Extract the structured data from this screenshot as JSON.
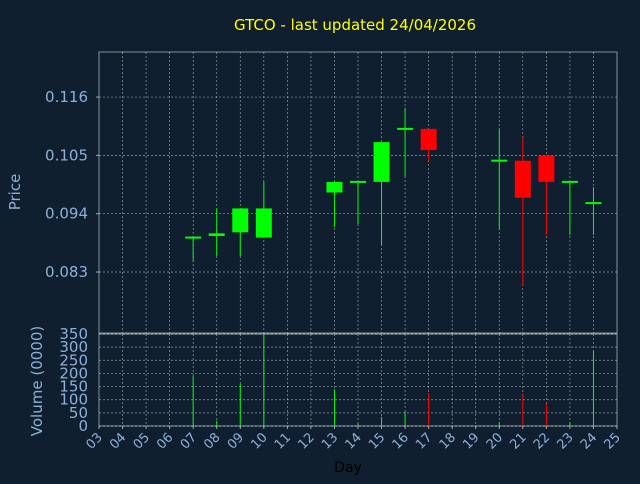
{
  "chart_data": {
    "type": "candlestick",
    "title": "GTCO - last updated 24/04/2026",
    "price_ylabel": "Price",
    "volume_ylabel": "Volume (0000)",
    "xlabel": "Day",
    "x_tick_labels": [
      "03",
      "04",
      "05",
      "06",
      "07",
      "08",
      "09",
      "10",
      "11",
      "12",
      "13",
      "14",
      "15",
      "16",
      "17",
      "18",
      "19",
      "20",
      "21",
      "22",
      "23",
      "24",
      "25"
    ],
    "price_ticks": [
      "0.083",
      "0.094",
      "0.105",
      "0.116"
    ],
    "price_ylim": [
      0.0715,
      0.1245
    ],
    "volume_ticks": [
      "0",
      "50",
      "100",
      "150",
      "200",
      "250",
      "300",
      "350"
    ],
    "volume_ylim": [
      0,
      350
    ],
    "grid": true,
    "colors": {
      "up": "#00ff00",
      "down": "#ff0000",
      "flat": "#00ff00",
      "title": "#ffff00",
      "axis_text": "#8fb0d8",
      "grid": "#ffffff",
      "background": "#0f1f30"
    },
    "candles": [
      {
        "day": "07",
        "open": 0.0895,
        "high": 0.0898,
        "low": 0.085,
        "close": 0.0895,
        "volume": 190
      },
      {
        "day": "08",
        "open": 0.0898,
        "high": 0.095,
        "low": 0.086,
        "close": 0.0903,
        "volume": 20
      },
      {
        "day": "09",
        "open": 0.0905,
        "high": 0.095,
        "low": 0.086,
        "close": 0.095,
        "volume": 160
      },
      {
        "day": "10",
        "open": 0.0895,
        "high": 0.1,
        "low": 0.0895,
        "close": 0.095,
        "volume": 350
      },
      {
        "day": "13",
        "open": 0.098,
        "high": 0.1,
        "low": 0.0915,
        "close": 0.1,
        "volume": 140
      },
      {
        "day": "14",
        "open": 0.1,
        "high": 0.1,
        "low": 0.092,
        "close": 0.1,
        "volume": 10
      },
      {
        "day": "15",
        "open": 0.1,
        "high": 0.1075,
        "low": 0.088,
        "close": 0.1075,
        "volume": 35
      },
      {
        "day": "16",
        "open": 0.11,
        "high": 0.114,
        "low": 0.101,
        "close": 0.11,
        "volume": 55
      },
      {
        "day": "17",
        "open": 0.11,
        "high": 0.11,
        "low": 0.104,
        "close": 0.106,
        "volume": 125
      },
      {
        "day": "20",
        "open": 0.104,
        "high": 0.11,
        "low": 0.091,
        "close": 0.104,
        "volume": 15
      },
      {
        "day": "21",
        "open": 0.104,
        "high": 0.1085,
        "low": 0.0805,
        "close": 0.097,
        "volume": 120
      },
      {
        "day": "22",
        "open": 0.105,
        "high": 0.105,
        "low": 0.09,
        "close": 0.1,
        "volume": 85
      },
      {
        "day": "23",
        "open": 0.1,
        "high": 0.1,
        "low": 0.09,
        "close": 0.1,
        "volume": 15
      },
      {
        "day": "24",
        "open": 0.096,
        "high": 0.099,
        "low": 0.09,
        "close": 0.096,
        "volume": 285
      }
    ]
  }
}
